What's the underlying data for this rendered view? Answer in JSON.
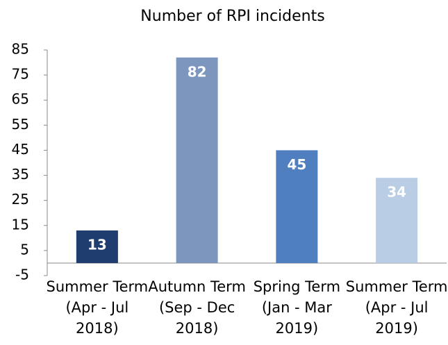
{
  "chart_data": {
    "type": "bar",
    "title": "Number of RPI incidents",
    "categories": [
      "Summer Term (Apr - Jul 2018)",
      "Autumn Term (Sep - Dec 2018)",
      "Spring Term (Jan - Mar 2019)",
      "Summer Term (Apr - Jul 2019)"
    ],
    "values": [
      13,
      82,
      45,
      34
    ],
    "colors": [
      "#1f3d6e",
      "#7d96bd",
      "#4f7fbf",
      "#b9cde5"
    ],
    "ylim": [
      -5,
      85
    ],
    "yticks": [
      -5,
      5,
      15,
      25,
      35,
      45,
      55,
      65,
      75,
      85
    ]
  }
}
